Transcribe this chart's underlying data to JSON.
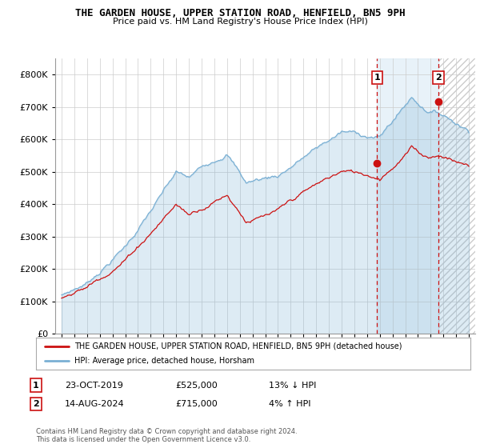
{
  "title": "THE GARDEN HOUSE, UPPER STATION ROAD, HENFIELD, BN5 9PH",
  "subtitle": "Price paid vs. HM Land Registry's House Price Index (HPI)",
  "legend_line1": "THE GARDEN HOUSE, UPPER STATION ROAD, HENFIELD, BN5 9PH (detached house)",
  "legend_line2": "HPI: Average price, detached house, Horsham",
  "annotation1_date": "23-OCT-2019",
  "annotation1_price": "£525,000",
  "annotation1_hpi": "13% ↓ HPI",
  "annotation2_date": "14-AUG-2024",
  "annotation2_price": "£715,000",
  "annotation2_hpi": "4% ↑ HPI",
  "footnote": "Contains HM Land Registry data © Crown copyright and database right 2024.\nThis data is licensed under the Open Government Licence v3.0.",
  "hpi_color": "#7ab0d4",
  "hpi_fill_color": "#daeaf5",
  "price_color": "#cc1111",
  "annotation_box_color": "#cc1111",
  "sale1_year": 2019.79,
  "sale1_price": 525000,
  "sale2_year": 2024.6,
  "sale2_price": 715000,
  "ylim_max": 850000,
  "yticks": [
    0,
    100000,
    200000,
    300000,
    400000,
    500000,
    600000,
    700000,
    800000
  ],
  "xmin": 1994.5,
  "xmax": 2027.5,
  "hatch_start": 2024.6,
  "shade_start": 2019.79,
  "shade_end": 2024.6
}
